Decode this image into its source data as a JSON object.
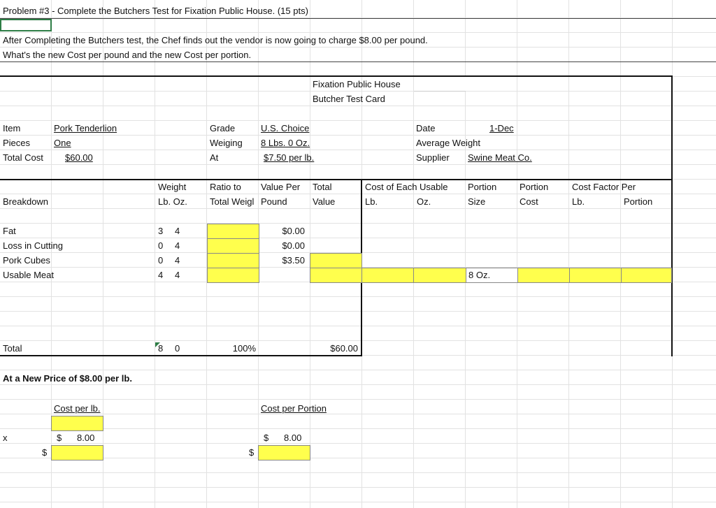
{
  "header": {
    "problem": "Problem #3 - Complete the Butchers Test for Fixation Public House.  (15 pts)",
    "instructions": [
      "After Completing the Butchers test, the Chef finds out the vendor is now going to charge $8.00 per pound.",
      "What's the new Cost per pound and the new Cost per portion."
    ]
  },
  "card": {
    "title": "Fixation Public House",
    "subtitle": "Butcher Test Card",
    "fields": [
      {
        "label": "Item",
        "value": "Pork Tenderlion"
      },
      {
        "label": "Pieces",
        "value": "One"
      },
      {
        "label": "Total Cost",
        "value": "$60.00"
      },
      {
        "label": "Grade",
        "value": "U.S. Choice"
      },
      {
        "label": "Weiging",
        "value": "8 Lbs. 0 Oz."
      },
      {
        "label": "At",
        "value": "$7.50 per lb."
      },
      {
        "label": "Date",
        "value": "1-Dec"
      },
      {
        "label": "Average Weight"
      },
      {
        "label": "Supplier",
        "value": "Swine Meat Co."
      }
    ]
  },
  "table": {
    "breakdown": "Breakdown",
    "headers": [
      {
        "line1": "Weight",
        "line2": "Lb. Oz."
      },
      {
        "line1": "Ratio to",
        "line2": "Total Weigl"
      },
      {
        "line1": "Value Per",
        "line2": "Pound"
      },
      {
        "line1": "Total",
        "line2": "Value"
      },
      {
        "line1": "Cost of Each Usable",
        "line2": "Lb."
      },
      {
        "line2": "Oz."
      },
      {
        "line1": "Portion",
        "line2": "Size"
      },
      {
        "line1": "Portion",
        "line2": "Cost"
      },
      {
        "line1": "Cost Factor Per",
        "line2": "Lb."
      },
      {
        "line2": "Portion"
      }
    ],
    "rows": [
      {
        "name": "Fat",
        "lb": "3",
        "oz": "4",
        "value_per_pound": "$0.00"
      },
      {
        "name": "Loss in Cutting",
        "lb": "0",
        "oz": "4",
        "value_per_pound": "$0.00"
      },
      {
        "name": "Pork Cubes",
        "lb": "0",
        "oz": "4",
        "value_per_pound": "$3.50"
      },
      {
        "name": "Usable Meat",
        "lb": "4",
        "oz": "4",
        "portion_size": "8 Oz."
      }
    ],
    "total": {
      "name": "Total",
      "lb": "8",
      "oz": "0",
      "ratio": "100%",
      "value": "$60.00"
    }
  },
  "new_price": {
    "title": "At a New Price of $8.00 per lb.",
    "cost_per_lb_label": "Cost per lb.",
    "cost_per_portion_label": "Cost per Portion",
    "x": "x",
    "cost_per_lb_currency": "$",
    "cost_per_lb": "8.00",
    "cost_per_portion_currency": "$",
    "cost_per_portion": "8.00",
    "answer_lb_currency": "$",
    "answer_portion_currency": "$"
  }
}
